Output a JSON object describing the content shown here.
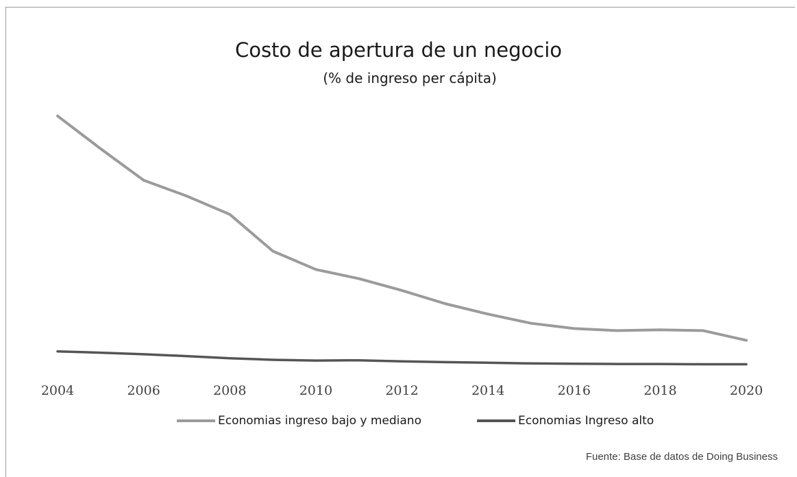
{
  "chart_data": {
    "type": "line",
    "title": "Costo de apertura de un negocio",
    "subtitle": "(% de ingreso per cápita)",
    "x": [
      2004,
      2005,
      2006,
      2007,
      2008,
      2009,
      2010,
      2011,
      2012,
      2013,
      2014,
      2015,
      2016,
      2017,
      2018,
      2019,
      2020
    ],
    "x_tick_labels": [
      "2004",
      "2006",
      "2008",
      "2010",
      "2012",
      "2014",
      "2016",
      "2018",
      "2020"
    ],
    "series": [
      {
        "name": "Economias ingreso bajo y mediano",
        "color": "#9b9b9b",
        "values": [
          95.0,
          82.5,
          70.5,
          64.5,
          57.5,
          43.5,
          36.5,
          33.0,
          28.5,
          23.5,
          19.5,
          16.0,
          14.0,
          13.2,
          13.5,
          13.2,
          9.5
        ]
      },
      {
        "name": "Economias Ingreso alto",
        "color": "#555555",
        "values": [
          5.3,
          4.8,
          4.2,
          3.5,
          2.7,
          2.1,
          1.8,
          1.9,
          1.5,
          1.2,
          1.0,
          0.7,
          0.6,
          0.5,
          0.5,
          0.4,
          0.4
        ]
      }
    ],
    "ylim": [
      0,
      100
    ],
    "grid": false,
    "legend_position": "bottom",
    "y_axis_labels_visible": false
  },
  "source_note": "Fuente: Base de datos de Doing Business"
}
